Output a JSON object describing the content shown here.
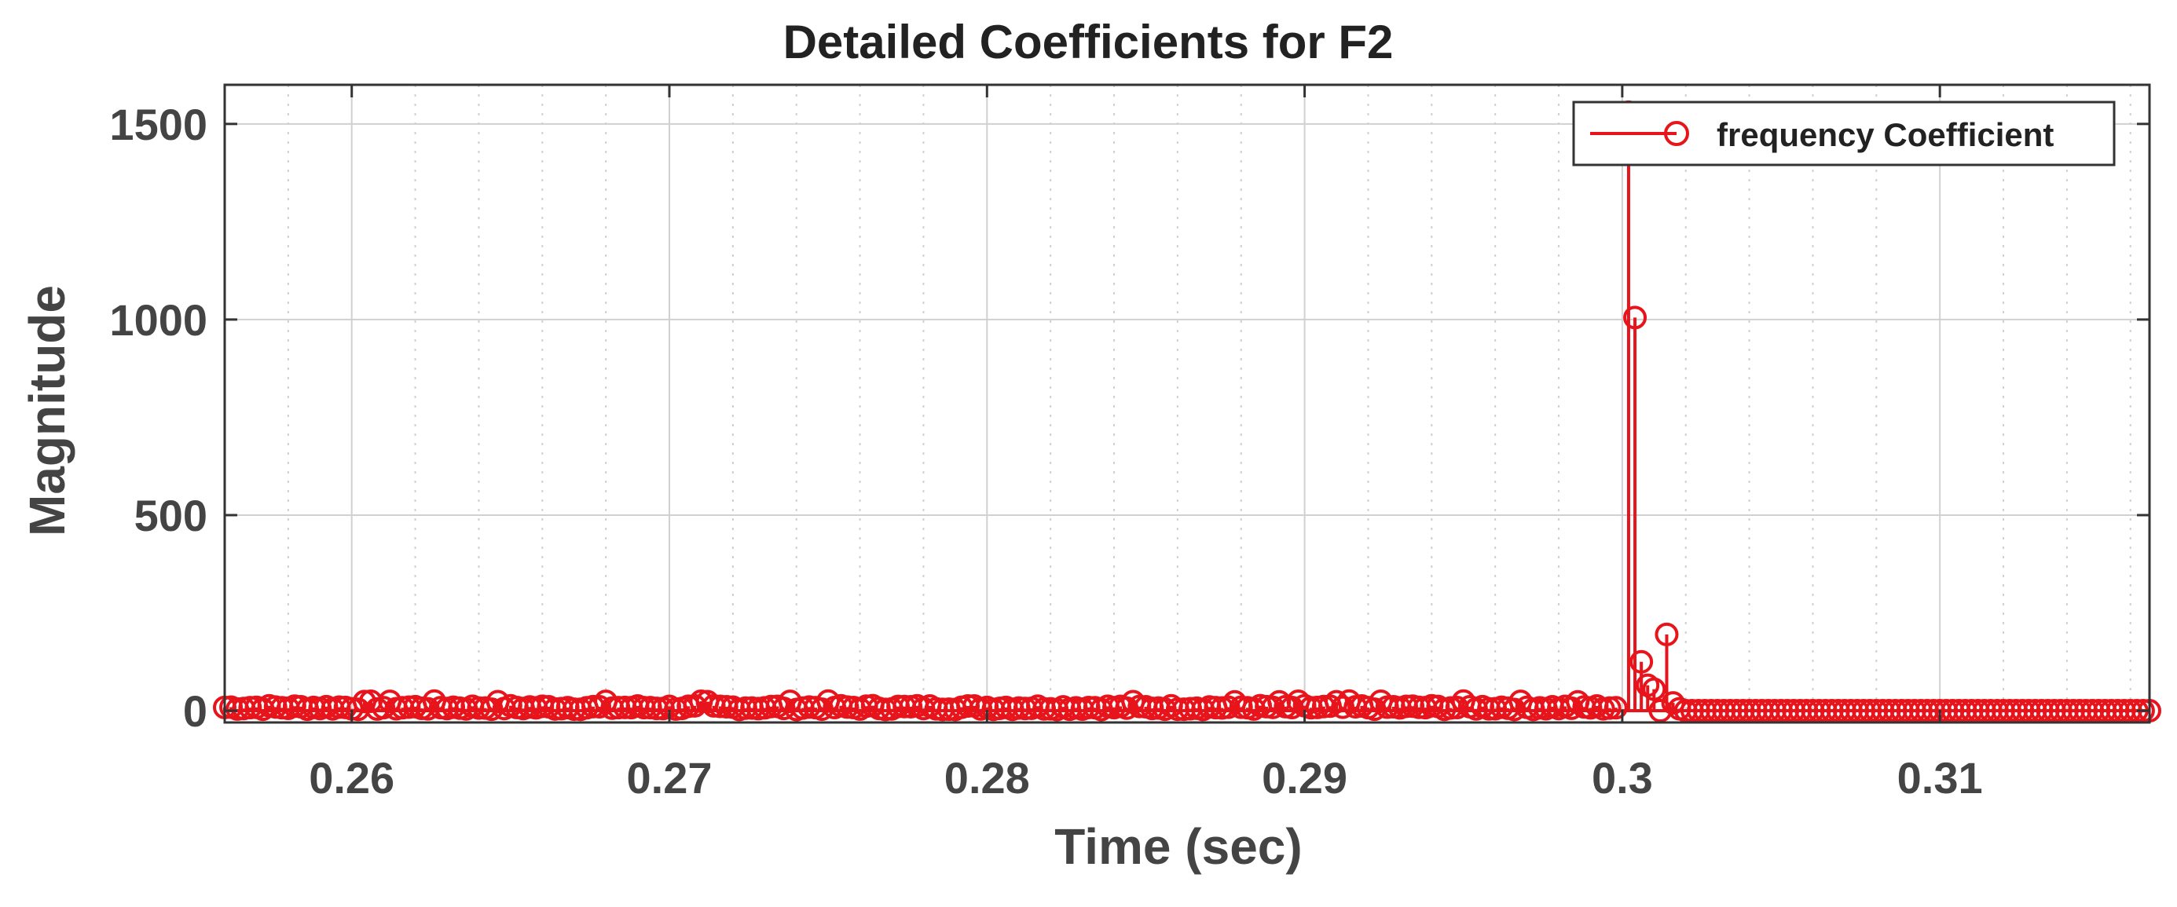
{
  "chart_data": {
    "type": "stem",
    "title": "Detailed Coefficients for F2",
    "xlabel": "Time (sec)",
    "ylabel": "Magnitude",
    "xlim": [
      0.256,
      0.3166
    ],
    "ylim": [
      -30,
      1600
    ],
    "xticks": [
      0.26,
      0.27,
      0.28,
      0.29,
      0.3,
      0.31
    ],
    "xtick_labels": [
      "0.26",
      "0.27",
      "0.28",
      "0.29",
      "0.3",
      "0.31"
    ],
    "yticks": [
      0,
      500,
      1000,
      1500
    ],
    "ytick_labels": [
      "0",
      "500",
      "1000",
      "1500"
    ],
    "grid": true,
    "minor_grid_x": true,
    "legend_position": "top-right",
    "colors": {
      "series": "#e8141c",
      "axis": "#333333",
      "grid": "#d0d0d0",
      "text": "#444444"
    },
    "series": [
      {
        "name": "frequency Coefficient",
        "marker": "circle",
        "sample_step": 0.0002,
        "noise_segment": {
          "x_start": 0.256,
          "x_end": 0.2998,
          "typical_value": 10,
          "max_value": 25
        },
        "zero_segment": {
          "x_start": 0.3022,
          "x_end": 0.3166,
          "value": 0
        },
        "peaks": [
          {
            "x": 0.3002,
            "y": 1530
          },
          {
            "x": 0.3004,
            "y": 1005
          },
          {
            "x": 0.3006,
            "y": 125
          },
          {
            "x": 0.3008,
            "y": 65
          },
          {
            "x": 0.301,
            "y": 55
          },
          {
            "x": 0.3012,
            "y": 0
          },
          {
            "x": 0.3014,
            "y": 195
          },
          {
            "x": 0.3016,
            "y": 20
          },
          {
            "x": 0.3018,
            "y": 5
          },
          {
            "x": 0.302,
            "y": 0
          }
        ]
      }
    ]
  }
}
